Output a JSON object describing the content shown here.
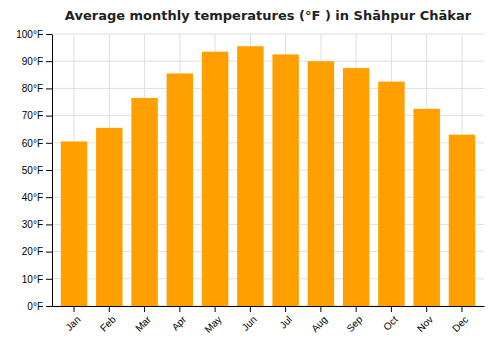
{
  "chart_data": {
    "type": "bar",
    "title": "Average monthly temperatures (°F ) in Shāhpur Chākar",
    "categories": [
      "Jan",
      "Feb",
      "Mar",
      "Apr",
      "May",
      "Jun",
      "Jul",
      "Aug",
      "Sep",
      "Oct",
      "Nov",
      "Dec"
    ],
    "values": [
      60.5,
      65.5,
      76.5,
      85.5,
      93.5,
      95.5,
      92.5,
      90.0,
      87.5,
      82.5,
      72.5,
      63.0
    ],
    "color": "#FFA000",
    "ylim": [
      0,
      100
    ],
    "yticks": [
      {
        "value": 0,
        "label": "0°F"
      },
      {
        "value": 10,
        "label": "10°F"
      },
      {
        "value": 20,
        "label": "20°F"
      },
      {
        "value": 30,
        "label": "30°F"
      },
      {
        "value": 40,
        "label": "40°F"
      },
      {
        "value": 50,
        "label": "50°F"
      },
      {
        "value": 60,
        "label": "60°F"
      },
      {
        "value": 70,
        "label": "70°F"
      },
      {
        "value": 80,
        "label": "80°F"
      },
      {
        "value": 90,
        "label": "90°F"
      },
      {
        "value": 100,
        "label": "100°F"
      }
    ],
    "grid": true
  }
}
